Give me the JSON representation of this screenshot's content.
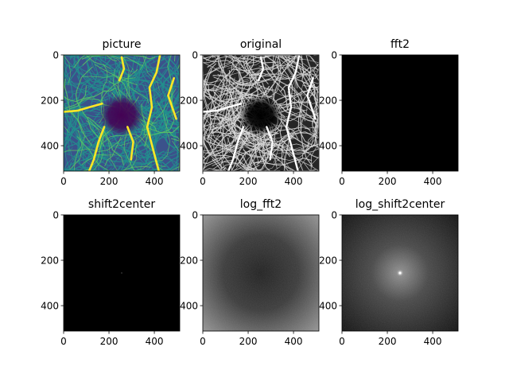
{
  "chart_data": [
    {
      "type": "heatmap",
      "title": "picture",
      "colormap": "viridis",
      "xlim": [
        0,
        512
      ],
      "ylim": [
        512,
        0
      ],
      "xticks": [
        0,
        200,
        400
      ],
      "yticks": [
        0,
        200,
        400
      ],
      "xtick_labels": [
        "0",
        "200",
        "400"
      ],
      "ytick_labels": [
        "0",
        "200",
        "400"
      ]
    },
    {
      "type": "heatmap",
      "title": "original",
      "colormap": "gray",
      "xlim": [
        0,
        512
      ],
      "ylim": [
        512,
        0
      ],
      "xticks": [
        0,
        200,
        400
      ],
      "yticks": [
        0,
        200,
        400
      ],
      "xtick_labels": [
        "0",
        "200",
        "400"
      ],
      "ytick_labels": [
        "0",
        "200",
        "400"
      ]
    },
    {
      "type": "heatmap",
      "title": "fft2",
      "colormap": "gray",
      "xlim": [
        0,
        512
      ],
      "ylim": [
        512,
        0
      ],
      "xticks": [
        0,
        200,
        400
      ],
      "yticks": [
        0,
        200,
        400
      ],
      "xtick_labels": [
        "0",
        "200",
        "400"
      ],
      "ytick_labels": [
        "0",
        "200",
        "400"
      ]
    },
    {
      "type": "heatmap",
      "title": "shift2center",
      "colormap": "gray",
      "xlim": [
        0,
        512
      ],
      "ylim": [
        512,
        0
      ],
      "xticks": [
        0,
        200,
        400
      ],
      "yticks": [
        0,
        200,
        400
      ],
      "xtick_labels": [
        "0",
        "200",
        "400"
      ],
      "ytick_labels": [
        "0",
        "200",
        "400"
      ]
    },
    {
      "type": "heatmap",
      "title": "log_fft2",
      "colormap": "gray",
      "xlim": [
        0,
        512
      ],
      "ylim": [
        512,
        0
      ],
      "xticks": [
        0,
        200,
        400
      ],
      "yticks": [
        0,
        200,
        400
      ],
      "xtick_labels": [
        "0",
        "200",
        "400"
      ],
      "ytick_labels": [
        "0",
        "200",
        "400"
      ]
    },
    {
      "type": "heatmap",
      "title": "log_shift2center",
      "colormap": "gray",
      "xlim": [
        0,
        512
      ],
      "ylim": [
        512,
        0
      ],
      "xticks": [
        0,
        200,
        400
      ],
      "yticks": [
        0,
        200,
        400
      ],
      "xtick_labels": [
        "0",
        "200",
        "400"
      ],
      "ytick_labels": [
        "0",
        "200",
        "400"
      ]
    }
  ],
  "colors": {
    "viridis_low": "#440154",
    "viridis_mid": "#21908d",
    "viridis_high": "#fde725",
    "black": "#000000",
    "white": "#ffffff",
    "gray_mid": "#6e6e6e"
  }
}
